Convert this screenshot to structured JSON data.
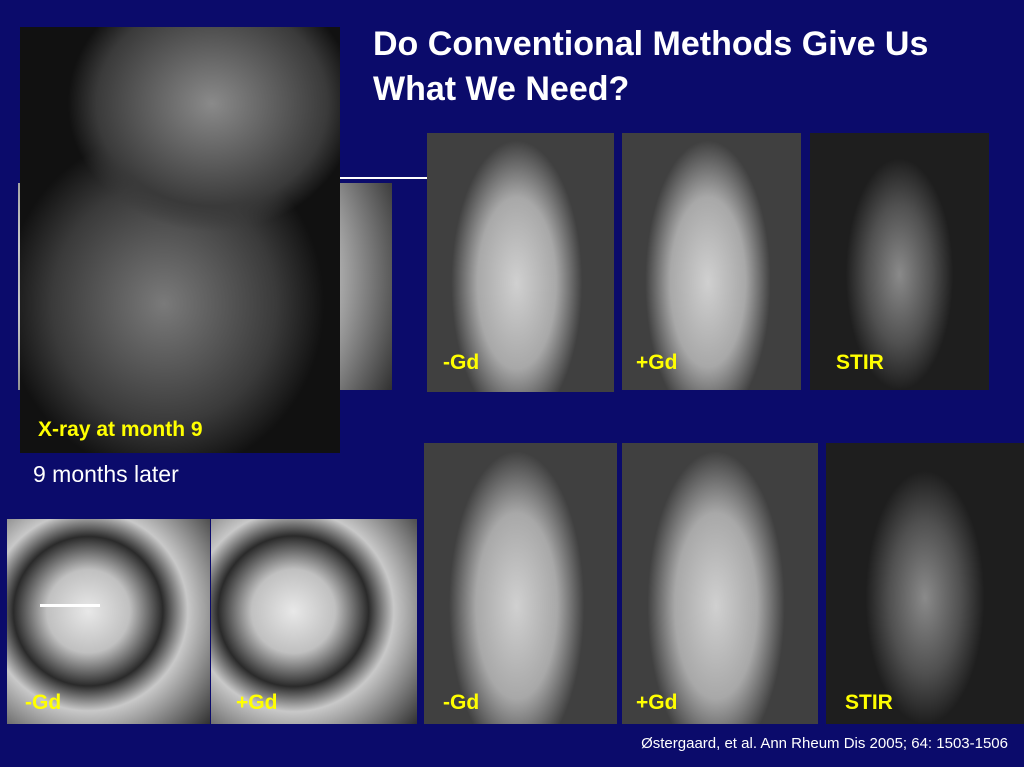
{
  "title": "Do Conventional Methods Give Us What We Need?",
  "xray_label": "X-ray at month 9",
  "later_label": "9 months later",
  "top_row": [
    "-Gd",
    "+Gd",
    "STIR"
  ],
  "bottom_row": [
    "-Gd",
    "+Gd",
    "STIR"
  ],
  "bottom_left": [
    "-Gd",
    "+Gd"
  ],
  "citation": "Østergaard, et al. Ann Rheum Dis 2005; 64: 1503-1506"
}
